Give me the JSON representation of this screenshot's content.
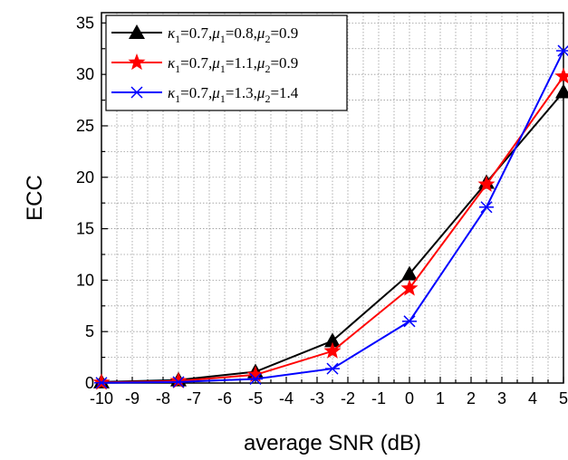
{
  "chart_data": {
    "type": "line",
    "xlabel": "average SNR (dB)",
    "ylabel": "ECC",
    "xlim": [
      -10,
      5
    ],
    "ylim": [
      0,
      36
    ],
    "xticks": [
      -10,
      -9,
      -8,
      -7,
      -6,
      -5,
      -4,
      -3,
      -2,
      -1,
      0,
      1,
      2,
      3,
      4,
      5
    ],
    "yticks": [
      0,
      5,
      10,
      15,
      20,
      25,
      30,
      35
    ],
    "grid": true,
    "legend_position": "top-left",
    "x": [
      -10,
      -7.5,
      -5,
      -2.5,
      0,
      2.5,
      5
    ],
    "series": [
      {
        "name": "κ1=0.7,μ1=0.8,μ2=0.9",
        "legend": [
          "κ",
          "1",
          "=0.7,",
          "μ",
          "1",
          "=0.8,",
          "μ",
          "2",
          "=0.9"
        ],
        "color": "#000000",
        "marker": "triangle",
        "values": [
          0.1,
          0.3,
          1.1,
          4.1,
          10.6,
          19.5,
          28.3
        ]
      },
      {
        "name": "κ1=0.7,μ1=1.1,μ2=0.9",
        "legend": [
          "κ",
          "1",
          "=0.7,",
          "μ",
          "1",
          "=1.1,",
          "μ",
          "2",
          "=0.9"
        ],
        "color": "#ff0000",
        "marker": "star",
        "values": [
          0.05,
          0.2,
          0.8,
          3.1,
          9.2,
          19.3,
          29.8
        ]
      },
      {
        "name": "κ1=0.7,μ1=1.3,μ2=1.4",
        "legend": [
          "κ",
          "1",
          "=0.7,",
          "μ",
          "1",
          "=1.3,",
          "μ",
          "2",
          "=1.4"
        ],
        "color": "#0000ff",
        "marker": "asterisk",
        "values": [
          0.02,
          0.1,
          0.4,
          1.4,
          6.0,
          17.1,
          32.3
        ]
      }
    ]
  }
}
